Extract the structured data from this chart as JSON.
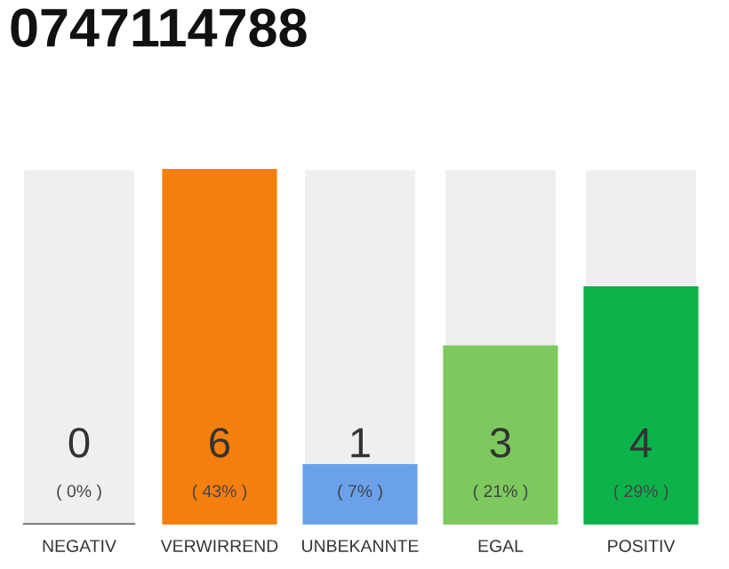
{
  "chart_data": {
    "type": "bar",
    "title": "0747114788",
    "categories": [
      "NEGATIV",
      "VERWIRREND",
      "UNBEKANNTE",
      "EGAL",
      "POSITIV"
    ],
    "values": [
      0,
      6,
      1,
      3,
      4
    ],
    "colors": [
      "#555555",
      "#f57f0c",
      "#6aa1ea",
      "#7dc95e",
      "#0cb34a"
    ],
    "value_labels": [
      "0\n( 0% )",
      "6\n( 43% )",
      "1\n( 7% )",
      "3\n( 21% )",
      "4\n( 29% )"
    ],
    "grid": false,
    "legend": false
  }
}
